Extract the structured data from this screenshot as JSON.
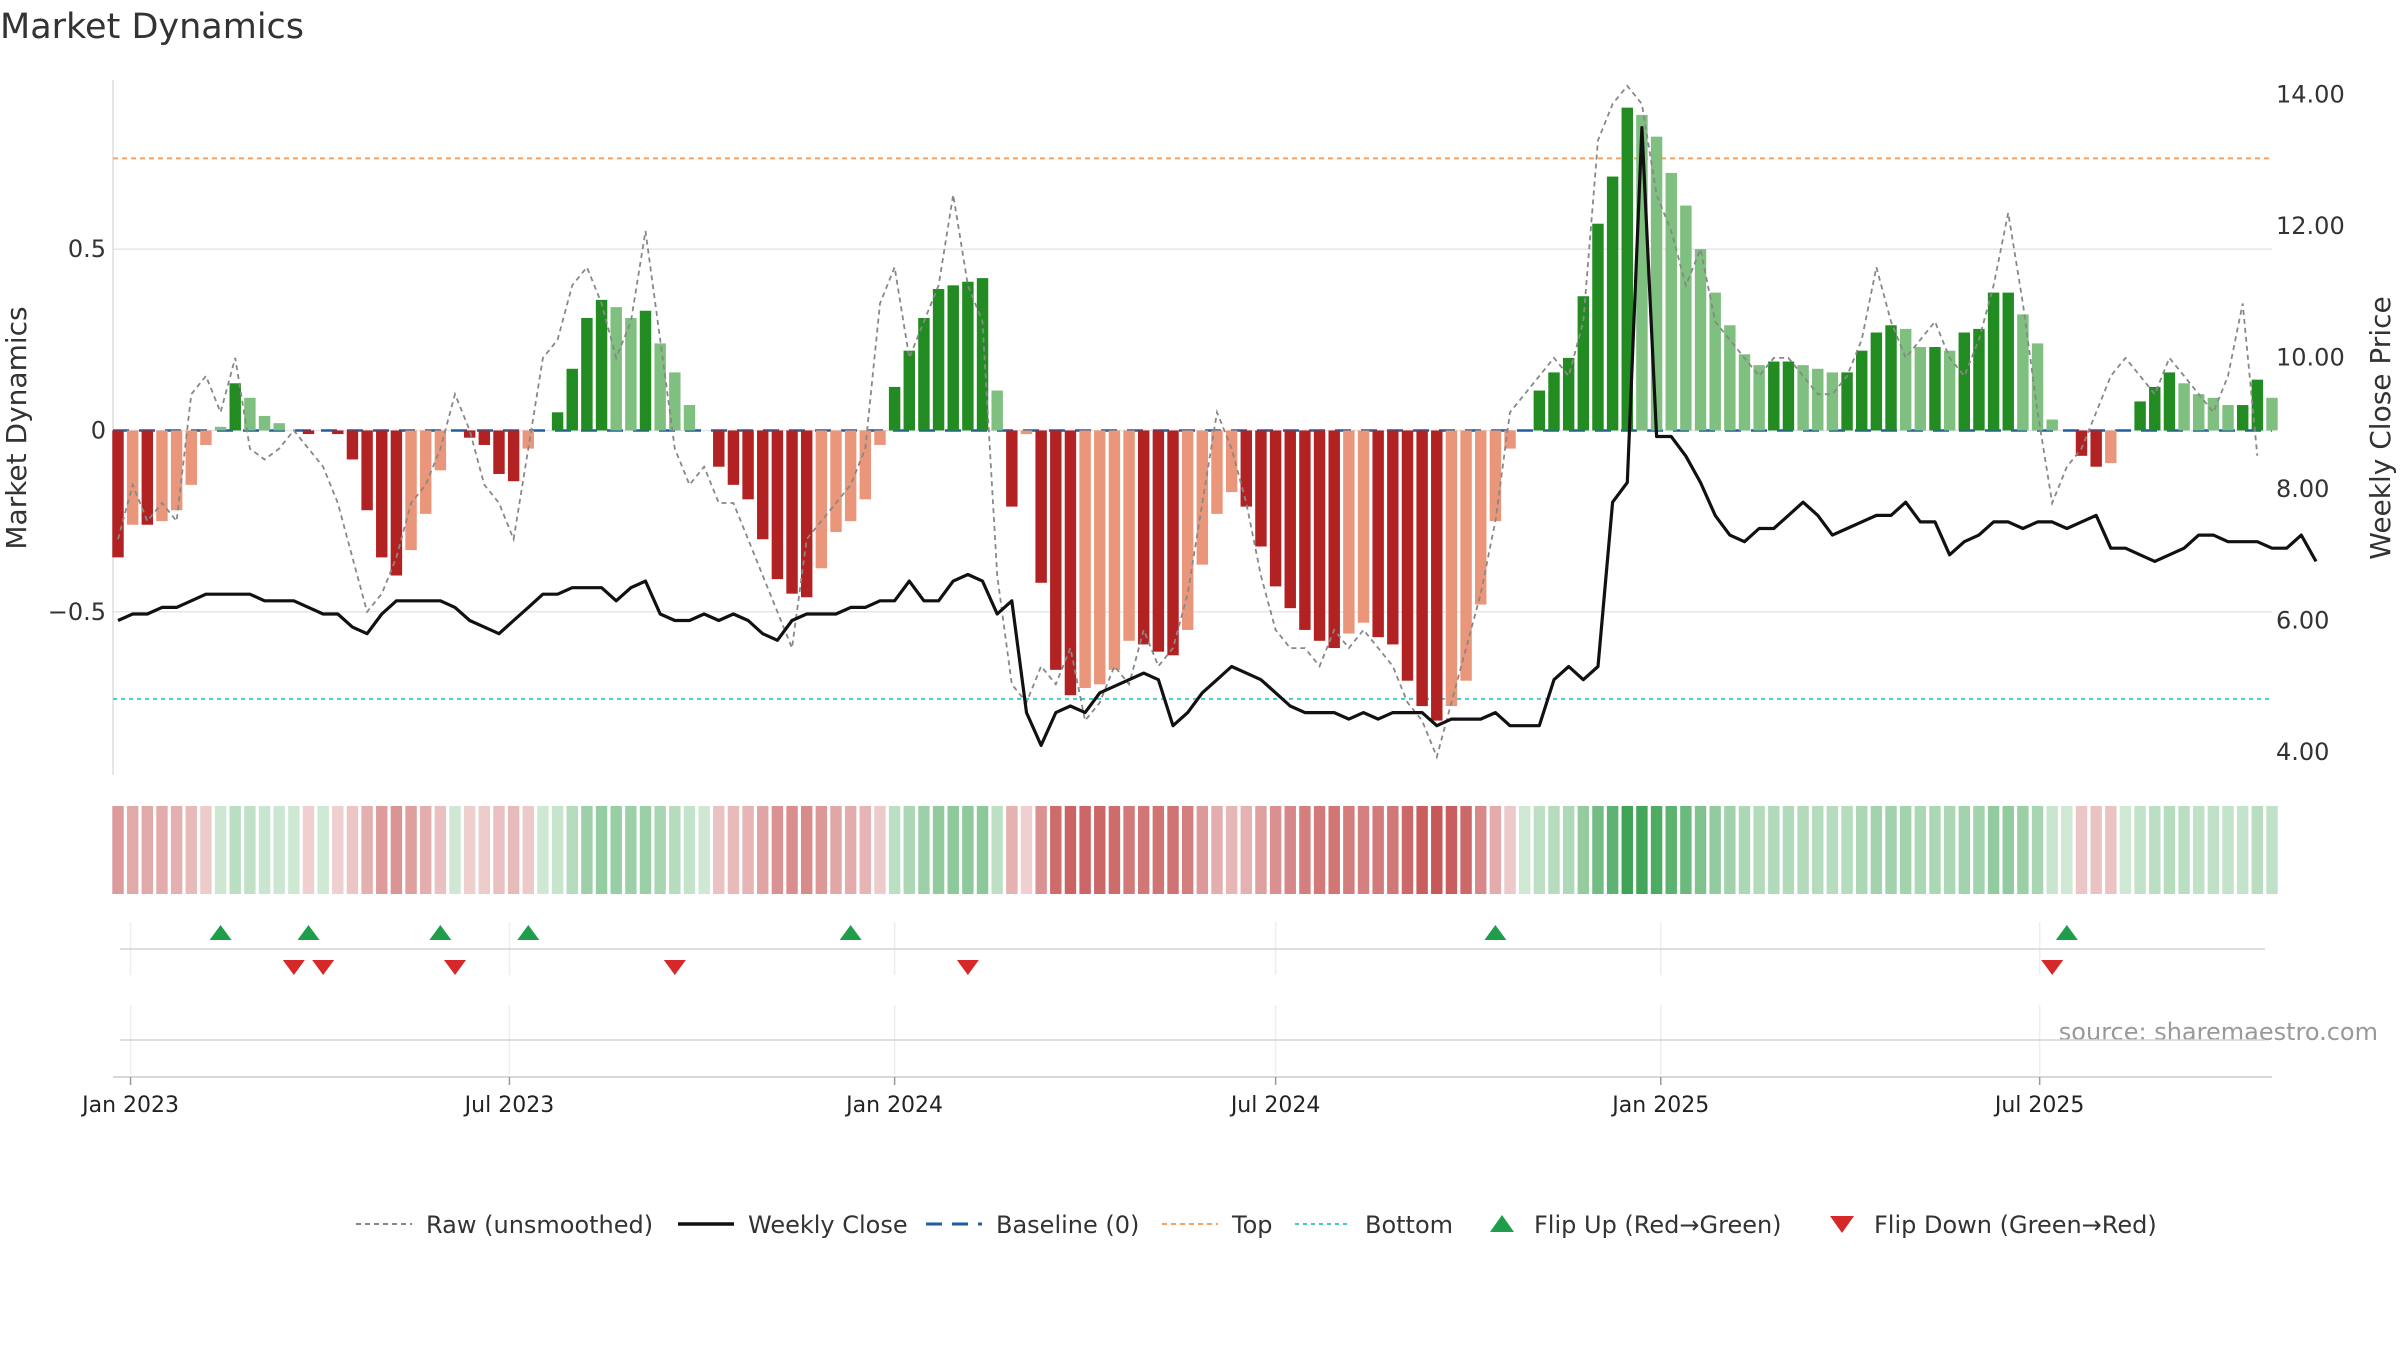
{
  "chart_data": {
    "type": "bar",
    "title": "Market Dynamics",
    "ylabel_left": "Market Dynamics",
    "ylabel_right": "Weekly Close Price",
    "left_axis": {
      "ylim": [
        -0.95,
        0.98
      ],
      "ticks": [
        0.5,
        0,
        -0.5
      ],
      "tick_labels": [
        "0.5",
        "0",
        "−0.5"
      ]
    },
    "right_axis": {
      "ylim": [
        3.65,
        14.3
      ],
      "ticks": [
        14,
        12,
        10,
        8,
        6,
        4
      ],
      "tick_labels": [
        "14.00",
        "12.00",
        "10.00",
        "8.00",
        "6.00",
        "4.00"
      ]
    },
    "x_dates": {
      "start": "2022-12-26",
      "weeks": 144
    },
    "x_tick_labels": [
      {
        "date": "2023-01-01",
        "label": "Jan 2023"
      },
      {
        "date": "2023-07-01",
        "label": "Jul 2023"
      },
      {
        "date": "2024-01-01",
        "label": "Jan 2024"
      },
      {
        "date": "2024-07-01",
        "label": "Jul 2024"
      },
      {
        "date": "2025-01-01",
        "label": "Jan 2025"
      },
      {
        "date": "2025-07-01",
        "label": "Jul 2025"
      }
    ],
    "top_level": 0.75,
    "bottom_level": -0.74,
    "series": [
      {
        "name": "Market Dynamics (smoothed)",
        "type": "bar",
        "values": [
          -0.35,
          -0.26,
          -0.26,
          -0.25,
          -0.22,
          -0.15,
          -0.04,
          0.01,
          0.13,
          0.09,
          0.04,
          0.02,
          0,
          -0.01,
          0,
          -0.01,
          -0.08,
          -0.22,
          -0.35,
          -0.4,
          -0.33,
          -0.23,
          -0.11,
          0,
          -0.02,
          -0.04,
          -0.12,
          -0.14,
          -0.05,
          0,
          0.05,
          0.17,
          0.31,
          0.36,
          0.34,
          0.31,
          0.33,
          0.24,
          0.16,
          0.07,
          0,
          -0.1,
          -0.15,
          -0.19,
          -0.3,
          -0.41,
          -0.45,
          -0.46,
          -0.38,
          -0.28,
          -0.25,
          -0.19,
          -0.04,
          0.12,
          0.22,
          0.31,
          0.39,
          0.4,
          0.41,
          0.42,
          0.11,
          -0.21,
          -0.01,
          -0.42,
          -0.66,
          -0.73,
          -0.71,
          -0.7,
          -0.66,
          -0.58,
          -0.59,
          -0.61,
          -0.62,
          -0.55,
          -0.37,
          -0.23,
          -0.17,
          -0.21,
          -0.32,
          -0.43,
          -0.49,
          -0.55,
          -0.58,
          -0.6,
          -0.56,
          -0.53,
          -0.57,
          -0.59,
          -0.69,
          -0.76,
          -0.8,
          -0.76,
          -0.69,
          -0.48,
          -0.25,
          -0.05,
          0,
          0.11,
          0.16,
          0.2,
          0.37,
          0.57,
          0.7,
          0.89,
          0.87,
          0.81,
          0.71,
          0.62,
          0.5,
          0.38,
          0.29,
          0.21,
          0.18,
          0.19,
          0.19,
          0.18,
          0.17,
          0.16,
          0.16,
          0.22,
          0.27,
          0.29,
          0.28,
          0.23,
          0.23,
          0.22,
          0.27,
          0.28,
          0.38,
          0.38,
          0.32,
          0.24,
          0.03,
          0,
          -0.07,
          -0.1,
          -0.09,
          0,
          0.08,
          0.12,
          0.16,
          0.13,
          0.1,
          0.09,
          0.07,
          0.07,
          0.14,
          0.09
        ]
      },
      {
        "name": "Raw (unsmoothed)",
        "type": "line",
        "values": [
          -0.3,
          -0.15,
          -0.25,
          -0.2,
          -0.25,
          0.1,
          0.15,
          0.05,
          0.2,
          -0.05,
          -0.08,
          -0.05,
          0,
          -0.05,
          -0.1,
          -0.2,
          -0.35,
          -0.5,
          -0.45,
          -0.35,
          -0.2,
          -0.15,
          -0.05,
          0.1,
          0,
          -0.15,
          -0.2,
          -0.3,
          -0.05,
          0.2,
          0.25,
          0.4,
          0.45,
          0.35,
          0.2,
          0.3,
          0.55,
          0.25,
          -0.05,
          -0.15,
          -0.1,
          -0.2,
          -0.2,
          -0.3,
          -0.4,
          -0.5,
          -0.6,
          -0.3,
          -0.25,
          -0.2,
          -0.15,
          -0.05,
          0.35,
          0.45,
          0.2,
          0.3,
          0.4,
          0.65,
          0.4,
          0.3,
          -0.4,
          -0.7,
          -0.75,
          -0.65,
          -0.7,
          -0.6,
          -0.8,
          -0.75,
          -0.65,
          -0.7,
          -0.55,
          -0.65,
          -0.6,
          -0.45,
          -0.2,
          0.05,
          -0.05,
          -0.2,
          -0.4,
          -0.55,
          -0.6,
          -0.6,
          -0.65,
          -0.55,
          -0.6,
          -0.55,
          -0.6,
          -0.65,
          -0.75,
          -0.8,
          -0.9,
          -0.75,
          -0.6,
          -0.45,
          -0.25,
          0.05,
          0.1,
          0.15,
          0.2,
          0.15,
          0.3,
          0.8,
          0.9,
          0.95,
          0.9,
          0.65,
          0.55,
          0.4,
          0.5,
          0.3,
          0.25,
          0.2,
          0.15,
          0.2,
          0.2,
          0.15,
          0.1,
          0.1,
          0.15,
          0.25,
          0.45,
          0.3,
          0.2,
          0.25,
          0.3,
          0.2,
          0.15,
          0.25,
          0.4,
          0.6,
          0.35,
          0.05,
          -0.2,
          -0.1,
          -0.05,
          0.05,
          0.15,
          0.2,
          0.15,
          0.1,
          0.2,
          0.15,
          0.1,
          0.05,
          0.15,
          0.35,
          -0.07
        ]
      },
      {
        "name": "Weekly Close",
        "type": "line",
        "axis": "right",
        "values": [
          6.0,
          6.1,
          6.1,
          6.2,
          6.2,
          6.3,
          6.4,
          6.4,
          6.4,
          6.4,
          6.3,
          6.3,
          6.3,
          6.2,
          6.1,
          6.1,
          5.9,
          5.8,
          6.1,
          6.3,
          6.3,
          6.3,
          6.3,
          6.2,
          6.0,
          5.9,
          5.8,
          6.0,
          6.2,
          6.4,
          6.4,
          6.5,
          6.5,
          6.5,
          6.3,
          6.5,
          6.6,
          6.1,
          6.0,
          6.0,
          6.1,
          6.0,
          6.1,
          6.0,
          5.8,
          5.7,
          6.0,
          6.1,
          6.1,
          6.1,
          6.2,
          6.2,
          6.3,
          6.3,
          6.6,
          6.3,
          6.3,
          6.6,
          6.7,
          6.6,
          6.1,
          6.3,
          4.6,
          4.1,
          4.6,
          4.7,
          4.6,
          4.9,
          5.0,
          5.1,
          5.2,
          5.1,
          4.4,
          4.6,
          4.9,
          5.1,
          5.3,
          5.2,
          5.1,
          4.9,
          4.7,
          4.6,
          4.6,
          4.6,
          4.5,
          4.6,
          4.5,
          4.6,
          4.6,
          4.6,
          4.4,
          4.5,
          4.5,
          4.5,
          4.6,
          4.4,
          4.4,
          4.4,
          5.1,
          5.3,
          5.1,
          5.3,
          7.8,
          8.1,
          13.5,
          8.8,
          8.8,
          8.5,
          8.1,
          7.6,
          7.3,
          7.2,
          7.4,
          7.4,
          7.6,
          7.8,
          7.6,
          7.3,
          7.4,
          7.5,
          7.6,
          7.6,
          7.8,
          7.5,
          7.5,
          7.0,
          7.2,
          7.3,
          7.5,
          7.5,
          7.4,
          7.5,
          7.5,
          7.4,
          7.5,
          7.6,
          7.1,
          7.1,
          7.0,
          6.9,
          7.0,
          7.1,
          7.3,
          7.3,
          7.2,
          7.2,
          7.2,
          7.1,
          7.1,
          7.3,
          6.9
        ]
      }
    ],
    "regime_strip": {
      "label_hidden": true,
      "note": "per-week colour strip mirroring bar sign and strength"
    },
    "flip_up_weeks": [
      7,
      13,
      22,
      28,
      50,
      94,
      133
    ],
    "flip_down_weeks": [
      12,
      14,
      23,
      38,
      58,
      132
    ],
    "legend": [
      {
        "label": "Raw (unsmoothed)",
        "style": "raw"
      },
      {
        "label": "Weekly Close",
        "style": "close"
      },
      {
        "label": "Baseline (0)",
        "style": "baseline"
      },
      {
        "label": "Top",
        "style": "top"
      },
      {
        "label": "Bottom",
        "style": "bottom"
      },
      {
        "label": "Flip Up (Red→Green)",
        "style": "flip-up"
      },
      {
        "label": "Flip Down (Green→Red)",
        "style": "flip-down"
      }
    ],
    "legend_position": "bottom-center",
    "source_text": "source: sharemaestro.com",
    "grid": true,
    "colors": {
      "strong_red": "#b22222",
      "light_red": "#e9967a",
      "strong_green": "#228b22",
      "light_green": "#7fbf7f",
      "top_line": "#f4a460",
      "bottom_line": "#48c9c9",
      "baseline": "#1f5fa0",
      "close_line": "#111111",
      "raw_line": "#888888",
      "flip_up": "#1e9e4a",
      "flip_down": "#d62828"
    }
  }
}
